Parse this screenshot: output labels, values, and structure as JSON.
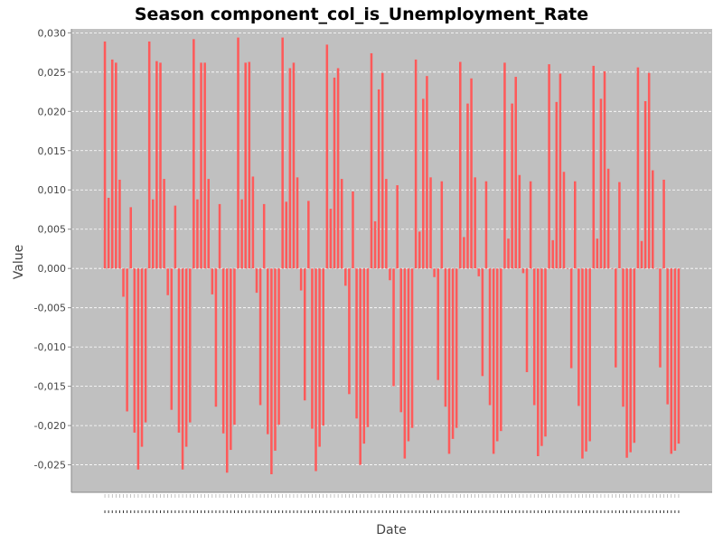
{
  "chart_data": {
    "type": "bar",
    "title": "Season component_col_is_Unemployment_Rate",
    "xlabel": "Date",
    "ylabel": "Value",
    "ylim": [
      -0.0285,
      0.0305
    ],
    "yticks": [
      -0.025,
      -0.02,
      -0.015,
      -0.01,
      -0.005,
      0.0,
      0.005,
      0.01,
      0.015,
      0.02,
      0.025,
      0.03
    ],
    "ytick_labels": [
      "-0,025",
      "-0,020",
      "-0,015",
      "-0,010",
      "-0,005",
      "0,000",
      "0,005",
      "0,010",
      "0,015",
      "0,020",
      "0,025",
      "0,030"
    ],
    "grid": true,
    "legend": "none",
    "colors": {
      "bar": "#ff5a5a",
      "plot_background": "#c0c0c0",
      "grid": "#ffffff"
    },
    "values": [
      0.0289,
      0.009,
      0.0266,
      0.0262,
      0.0113,
      -0.0036,
      -0.0182,
      0.0078,
      -0.0209,
      -0.0256,
      -0.0227,
      -0.0196,
      0.0289,
      0.0088,
      0.0264,
      0.0262,
      0.0114,
      -0.0034,
      -0.018,
      0.008,
      -0.0209,
      -0.0256,
      -0.0227,
      -0.0196,
      0.0292,
      0.0088,
      0.0262,
      0.0262,
      0.0114,
      -0.0033,
      -0.0176,
      0.0082,
      -0.021,
      -0.026,
      -0.0231,
      -0.0199,
      0.0294,
      0.0088,
      0.0262,
      0.0263,
      0.0117,
      -0.0031,
      -0.0174,
      0.0082,
      -0.0211,
      -0.0262,
      -0.0232,
      -0.0199,
      0.0294,
      0.0085,
      0.0255,
      0.0262,
      0.0116,
      -0.0028,
      -0.0168,
      0.0086,
      -0.0204,
      -0.0258,
      -0.0227,
      -0.02,
      0.0285,
      0.0076,
      0.0243,
      0.0255,
      0.0114,
      -0.0022,
      -0.016,
      0.0098,
      -0.0191,
      -0.025,
      -0.0223,
      -0.0202,
      0.0274,
      0.006,
      0.0228,
      0.0249,
      0.0114,
      -0.0015,
      -0.015,
      0.0106,
      -0.0183,
      -0.0242,
      -0.022,
      -0.0203,
      0.0266,
      0.0047,
      0.0216,
      0.0245,
      0.0116,
      -0.0011,
      -0.0142,
      0.0111,
      -0.0176,
      -0.0236,
      -0.0217,
      -0.0203,
      0.0263,
      0.004,
      0.021,
      0.0242,
      0.0116,
      -0.001,
      -0.0137,
      0.0111,
      -0.0174,
      -0.0236,
      -0.022,
      -0.0207,
      0.0262,
      0.0038,
      0.021,
      0.0244,
      0.0119,
      -0.0006,
      -0.0132,
      0.0111,
      -0.0174,
      -0.0239,
      -0.0226,
      -0.0214,
      0.026,
      0.0036,
      0.0212,
      0.0248,
      0.0123,
      0.0,
      -0.0127,
      0.0111,
      -0.0175,
      -0.0242,
      -0.0233,
      -0.022,
      0.0258,
      0.0038,
      0.0216,
      0.0251,
      0.0127,
      0.0,
      -0.0126,
      0.011,
      -0.0176,
      -0.0241,
      -0.0234,
      -0.0222,
      0.0256,
      0.0035,
      0.0213,
      0.0249,
      0.0125,
      0.0,
      -0.0126,
      0.0113,
      -0.0173,
      -0.0236,
      -0.0232,
      -0.0223
    ]
  }
}
